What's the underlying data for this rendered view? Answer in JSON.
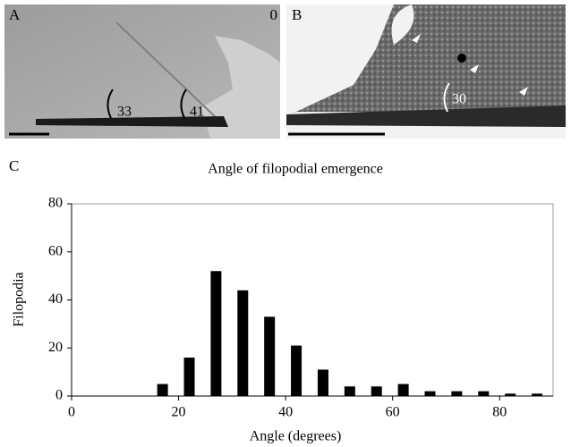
{
  "panels": {
    "a": {
      "label": "A",
      "corner": "0",
      "angles": [
        "33",
        "41"
      ]
    },
    "b": {
      "label": "B",
      "angles": [
        "30"
      ]
    },
    "c": {
      "label": "C"
    }
  },
  "chart_data": {
    "type": "bar",
    "title": "Angle of filopodial emergence",
    "x_label": "Angle (degrees)",
    "y_label": "Filopodia",
    "x": [
      17,
      22,
      27,
      32,
      37,
      42,
      47,
      52,
      57,
      62,
      67,
      72,
      77,
      82,
      87
    ],
    "values": [
      5,
      16,
      52,
      44,
      33,
      21,
      11,
      4,
      4,
      5,
      2,
      2,
      2,
      1,
      1
    ],
    "color": "#000000",
    "xlim": [
      0,
      90
    ],
    "xticks": [
      0,
      20,
      40,
      60,
      80
    ],
    "ylim": [
      0,
      80
    ],
    "yticks": [
      0,
      20,
      40,
      60,
      80
    ]
  }
}
